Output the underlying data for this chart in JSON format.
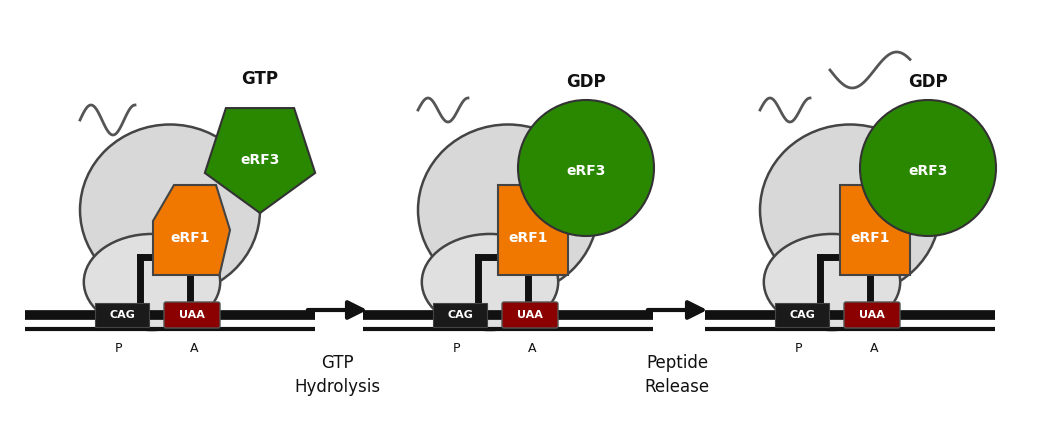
{
  "bg_color": "#ffffff",
  "erf1_color": "#f07800",
  "erf3_color": "#2a8800",
  "uaa_color": "#8b0000",
  "mrna_color": "#111111",
  "text_color": "#111111",
  "label_gtp": "GTP",
  "label_gdp": "GDP",
  "label_erf3": "eRF3",
  "label_erf1": "eRF1",
  "label_cag": "CAG",
  "label_uaa": "UAA",
  "label_p": "P",
  "label_a": "A",
  "label_step1": "GTP\nHydrolysis",
  "label_step2": "Peptide\nRelease",
  "figsize": [
    10.55,
    4.28
  ],
  "dpi": 100
}
